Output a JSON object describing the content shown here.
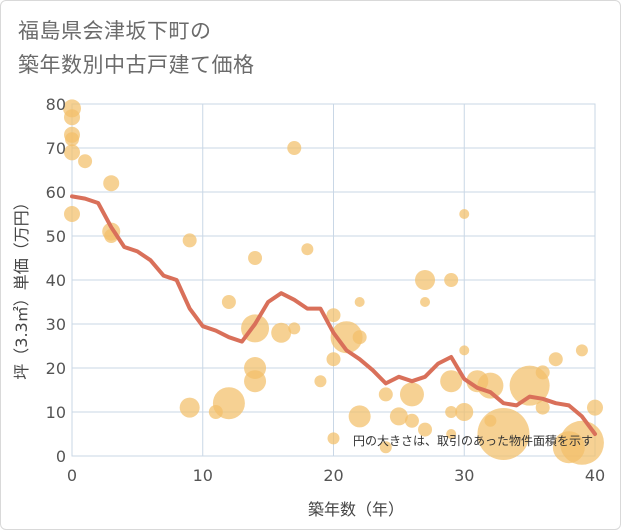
{
  "title_line1": "福島県会津坂下町の",
  "title_line2": "築年数別中古戸建て価格",
  "note": "円の大きさは、取引のあった物件面積を示す",
  "colors": {
    "line": "#d9705a",
    "bubble": "#f2bf6a",
    "grid": "#c9d7e6",
    "plot_bg": "#ffffff"
  },
  "chart_data": {
    "type": "scatter",
    "xlabel": "築年数（年）",
    "ylabel": "坪（3.3㎡）単価（万円）",
    "xlim": [
      0,
      40
    ],
    "ylim": [
      0,
      80
    ],
    "xticks": [
      "0",
      "10",
      "20",
      "30",
      "40"
    ],
    "yticks": [
      "0",
      "10",
      "20",
      "30",
      "40",
      "50",
      "60",
      "70",
      "80"
    ],
    "bubbles": [
      {
        "x": 0,
        "y": 79,
        "s": 9
      },
      {
        "x": 0,
        "y": 77,
        "s": 8
      },
      {
        "x": 0,
        "y": 73,
        "s": 8
      },
      {
        "x": 0,
        "y": 72,
        "s": 7
      },
      {
        "x": 0,
        "y": 69,
        "s": 8
      },
      {
        "x": 0,
        "y": 55,
        "s": 8
      },
      {
        "x": 1,
        "y": 67,
        "s": 7
      },
      {
        "x": 3,
        "y": 62,
        "s": 8
      },
      {
        "x": 3,
        "y": 51,
        "s": 9
      },
      {
        "x": 3,
        "y": 50,
        "s": 7
      },
      {
        "x": 9,
        "y": 49,
        "s": 7
      },
      {
        "x": 9,
        "y": 11,
        "s": 10
      },
      {
        "x": 11,
        "y": 10,
        "s": 7
      },
      {
        "x": 12,
        "y": 35,
        "s": 7
      },
      {
        "x": 12,
        "y": 12,
        "s": 16
      },
      {
        "x": 14,
        "y": 45,
        "s": 7
      },
      {
        "x": 14,
        "y": 29,
        "s": 14
      },
      {
        "x": 14,
        "y": 20,
        "s": 11
      },
      {
        "x": 14,
        "y": 17,
        "s": 11
      },
      {
        "x": 16,
        "y": 28,
        "s": 10
      },
      {
        "x": 17,
        "y": 70,
        "s": 7
      },
      {
        "x": 17,
        "y": 29,
        "s": 6
      },
      {
        "x": 18,
        "y": 47,
        "s": 6
      },
      {
        "x": 19,
        "y": 17,
        "s": 6
      },
      {
        "x": 20,
        "y": 32,
        "s": 7
      },
      {
        "x": 20,
        "y": 22,
        "s": 7
      },
      {
        "x": 20,
        "y": 4,
        "s": 6
      },
      {
        "x": 21,
        "y": 27,
        "s": 16
      },
      {
        "x": 22,
        "y": 35,
        "s": 5
      },
      {
        "x": 22,
        "y": 27,
        "s": 7
      },
      {
        "x": 22,
        "y": 9,
        "s": 11
      },
      {
        "x": 24,
        "y": 14,
        "s": 7
      },
      {
        "x": 24,
        "y": 2,
        "s": 6
      },
      {
        "x": 25,
        "y": 9,
        "s": 9
      },
      {
        "x": 26,
        "y": 14,
        "s": 12
      },
      {
        "x": 26,
        "y": 8,
        "s": 7
      },
      {
        "x": 27,
        "y": 40,
        "s": 10
      },
      {
        "x": 27,
        "y": 35,
        "s": 5
      },
      {
        "x": 27,
        "y": 6,
        "s": 7
      },
      {
        "x": 29,
        "y": 40,
        "s": 7
      },
      {
        "x": 29,
        "y": 17,
        "s": 11
      },
      {
        "x": 29,
        "y": 10,
        "s": 6
      },
      {
        "x": 29,
        "y": 5,
        "s": 5
      },
      {
        "x": 30,
        "y": 55,
        "s": 5
      },
      {
        "x": 30,
        "y": 24,
        "s": 5
      },
      {
        "x": 30,
        "y": 10,
        "s": 9
      },
      {
        "x": 31,
        "y": 17,
        "s": 11
      },
      {
        "x": 32,
        "y": 16,
        "s": 13
      },
      {
        "x": 32,
        "y": 8,
        "s": 6
      },
      {
        "x": 33,
        "y": 5,
        "s": 26
      },
      {
        "x": 35,
        "y": 16,
        "s": 20
      },
      {
        "x": 36,
        "y": 19,
        "s": 7
      },
      {
        "x": 36,
        "y": 11,
        "s": 7
      },
      {
        "x": 37,
        "y": 22,
        "s": 7
      },
      {
        "x": 38,
        "y": 2,
        "s": 16
      },
      {
        "x": 39,
        "y": 24,
        "s": 6
      },
      {
        "x": 40,
        "y": 11,
        "s": 8
      },
      {
        "x": 39,
        "y": 3,
        "s": 22
      }
    ],
    "series": [
      {
        "x": [
          0,
          1,
          2,
          3,
          4,
          5,
          6,
          7,
          8,
          9,
          10,
          11,
          12,
          13,
          14,
          15,
          16,
          17,
          18,
          19,
          20,
          21,
          22,
          23,
          24,
          25,
          26,
          27,
          28,
          29,
          30,
          31,
          32,
          33,
          34,
          35,
          36,
          37,
          38,
          39,
          40
        ],
        "values": [
          59,
          58.5,
          57.5,
          52,
          47.5,
          46.5,
          44.5,
          41,
          40,
          33.5,
          29.5,
          28.5,
          27,
          26,
          30,
          35,
          37,
          35.5,
          33.5,
          33.5,
          28,
          24,
          22,
          19.5,
          16.5,
          18,
          17,
          18,
          21,
          22.5,
          17.5,
          15.5,
          14.5,
          12,
          11.5,
          13.5,
          13,
          12,
          11.5,
          9,
          5
        ]
      }
    ]
  }
}
